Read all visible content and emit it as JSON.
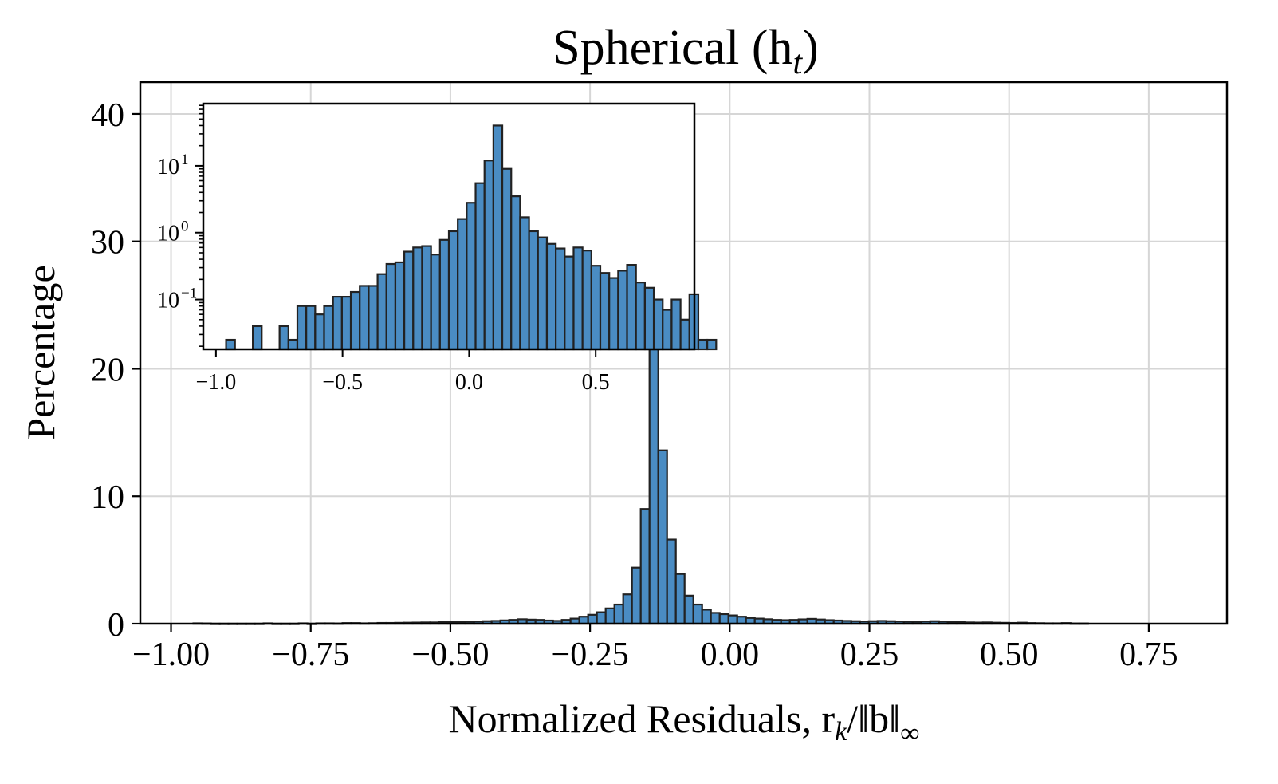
{
  "chart_data": [
    {
      "type": "bar",
      "title": "Spherical (h",
      "title_sub": "t",
      "title_close": ")",
      "xlabel": "Normalized Residuals, r",
      "xlabel_sub": "k",
      "xlabel_tail": "/‖b‖",
      "xlabel_tail_sub": "∞",
      "ylabel": "Percentage",
      "xlim": [
        -1.055,
        0.89
      ],
      "ylim": [
        0,
        42.5
      ],
      "xticks": [
        -1.0,
        -0.75,
        -0.5,
        -0.25,
        0.0,
        0.25,
        0.5,
        0.75
      ],
      "xtick_labels": [
        "−1.00",
        "−0.75",
        "−0.50",
        "−0.25",
        "0.00",
        "0.25",
        "0.50",
        "0.75"
      ],
      "yticks": [
        0,
        10,
        20,
        30,
        40
      ],
      "ytick_labels": [
        "0",
        "10",
        "20",
        "30",
        "40"
      ],
      "grid": true,
      "bin_start": -0.96,
      "bin_width": 0.0157,
      "values": [
        0.03,
        0.02,
        0.0,
        0.0,
        0.0,
        0.0,
        0.0,
        0.0,
        0.03,
        0.0,
        0.0,
        0.0,
        0.03,
        0.0,
        0.03,
        0.03,
        0.02,
        0.05,
        0.05,
        0.03,
        0.04,
        0.06,
        0.06,
        0.07,
        0.08,
        0.09,
        0.1,
        0.1,
        0.12,
        0.12,
        0.14,
        0.15,
        0.17,
        0.2,
        0.22,
        0.26,
        0.3,
        0.35,
        0.32,
        0.3,
        0.25,
        0.22,
        0.3,
        0.4,
        0.55,
        0.7,
        0.9,
        1.2,
        1.5,
        2.3,
        4.4,
        9.0,
        40.5,
        13.6,
        6.6,
        3.9,
        2.2,
        1.5,
        1.1,
        0.85,
        0.75,
        0.65,
        0.55,
        0.45,
        0.4,
        0.35,
        0.3,
        0.28,
        0.3,
        0.34,
        0.38,
        0.33,
        0.28,
        0.25,
        0.22,
        0.2,
        0.18,
        0.2,
        0.22,
        0.2,
        0.18,
        0.16,
        0.15,
        0.18,
        0.2,
        0.17,
        0.14,
        0.12,
        0.1,
        0.09,
        0.1,
        0.08,
        0.07,
        0.06,
        0.08,
        0.05,
        0.04,
        0.03,
        0.03,
        0.05,
        0.02,
        0.02
      ]
    },
    {
      "type": "bar",
      "inset": true,
      "yscale": "log",
      "xlim": [
        -1.05,
        0.89
      ],
      "ylim": [
        0.018,
        85
      ],
      "xticks": [
        -1.0,
        -0.5,
        0.0,
        0.5
      ],
      "xtick_labels": [
        "−1.0",
        "−0.5",
        "0.0",
        "0.5"
      ],
      "yticks_major": [
        0.1,
        1,
        10
      ],
      "ytick_labels": [
        "10",
        "10",
        "10"
      ],
      "ytick_exponents": [
        "−1",
        "0",
        "1"
      ],
      "bin_start": -0.96,
      "bin_width": 0.0352,
      "values": [
        0.025,
        0.0,
        0.0,
        0.04,
        0.0,
        0.0,
        0.04,
        0.025,
        0.08,
        0.08,
        0.06,
        0.08,
        0.11,
        0.11,
        0.13,
        0.16,
        0.16,
        0.24,
        0.34,
        0.36,
        0.52,
        0.6,
        0.63,
        0.47,
        0.78,
        1.05,
        1.6,
        2.8,
        5.5,
        12.0,
        40.0,
        9.0,
        3.5,
        1.7,
        1.05,
        0.85,
        0.68,
        0.58,
        0.44,
        0.6,
        0.54,
        0.32,
        0.25,
        0.21,
        0.27,
        0.33,
        0.18,
        0.15,
        0.1,
        0.07,
        0.1,
        0.05,
        0.12,
        0.025,
        0.025
      ]
    }
  ]
}
